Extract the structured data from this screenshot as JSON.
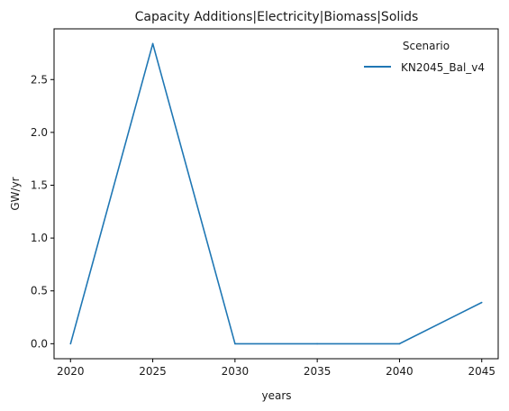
{
  "chart_data": {
    "type": "line",
    "title": "Capacity Additions|Electricity|Biomass|Solids",
    "xlabel": "years",
    "ylabel": "GW/yr",
    "x": [
      2020,
      2025,
      2030,
      2035,
      2040,
      2045
    ],
    "xlim": [
      2019,
      2046
    ],
    "ylim": [
      -0.142,
      2.98
    ],
    "xticks": [
      2020,
      2025,
      2030,
      2035,
      2040,
      2045
    ],
    "yticks": [
      0.0,
      0.5,
      1.0,
      1.5,
      2.0,
      2.5
    ],
    "ytick_labels": [
      "0.0",
      "0.5",
      "1.0",
      "1.5",
      "2.0",
      "2.5"
    ],
    "grid": false,
    "legend": {
      "title": "Scenario",
      "placement": "top-right"
    },
    "series": [
      {
        "name": "KN2045_Bal_v4",
        "color": "#1f77b4",
        "values": [
          0.0,
          2.84,
          0.0,
          0.0,
          0.0,
          0.39
        ]
      }
    ]
  }
}
